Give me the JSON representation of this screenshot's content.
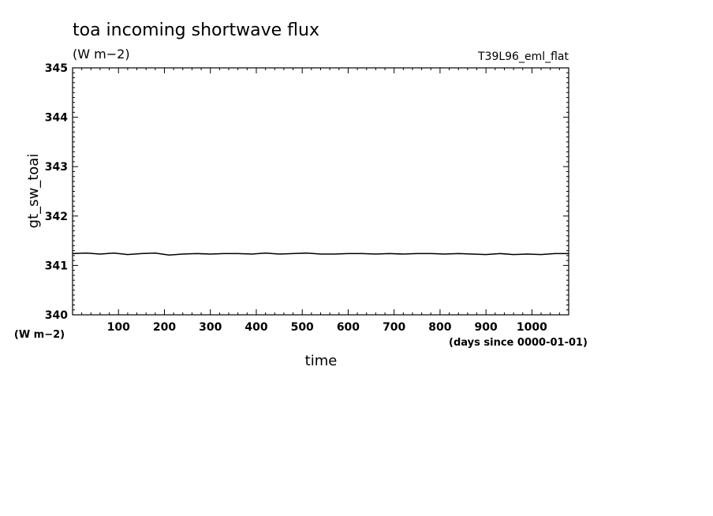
{
  "chart_data": {
    "type": "line",
    "title": "toa incoming shortwave flux",
    "subtitle": "(W m−2)",
    "run_name": "T39L96_eml_flat",
    "xlabel": "time",
    "xunits": "(days since 0000-01-01)",
    "ylabel": "gt_sw_toai",
    "yunits": "(W m−2)",
    "xlim": [
      0,
      1080
    ],
    "ylim": [
      340,
      345
    ],
    "x_major_ticks": [
      100,
      200,
      300,
      400,
      500,
      600,
      700,
      800,
      900,
      1000
    ],
    "y_major_ticks": [
      340,
      341,
      342,
      343,
      344,
      345
    ],
    "grid": false,
    "series": [
      {
        "x": [
          0,
          30,
          60,
          90,
          120,
          150,
          180,
          210,
          240,
          270,
          300,
          330,
          360,
          390,
          420,
          450,
          480,
          510,
          540,
          570,
          600,
          630,
          660,
          690,
          720,
          750,
          780,
          810,
          840,
          870,
          900,
          930,
          960,
          990,
          1020,
          1050,
          1080
        ],
        "y": [
          341.24,
          341.25,
          341.23,
          341.25,
          341.22,
          341.24,
          341.25,
          341.21,
          341.23,
          341.24,
          341.23,
          341.24,
          341.24,
          341.23,
          341.25,
          341.23,
          341.24,
          341.25,
          341.23,
          341.23,
          341.24,
          341.24,
          341.23,
          341.24,
          341.23,
          341.24,
          341.24,
          341.23,
          341.24,
          341.23,
          341.22,
          341.24,
          341.22,
          341.23,
          341.22,
          341.24,
          341.24
        ]
      }
    ]
  },
  "colors": {
    "line": "#000000",
    "axes": "#000000",
    "background": "#ffffff"
  }
}
